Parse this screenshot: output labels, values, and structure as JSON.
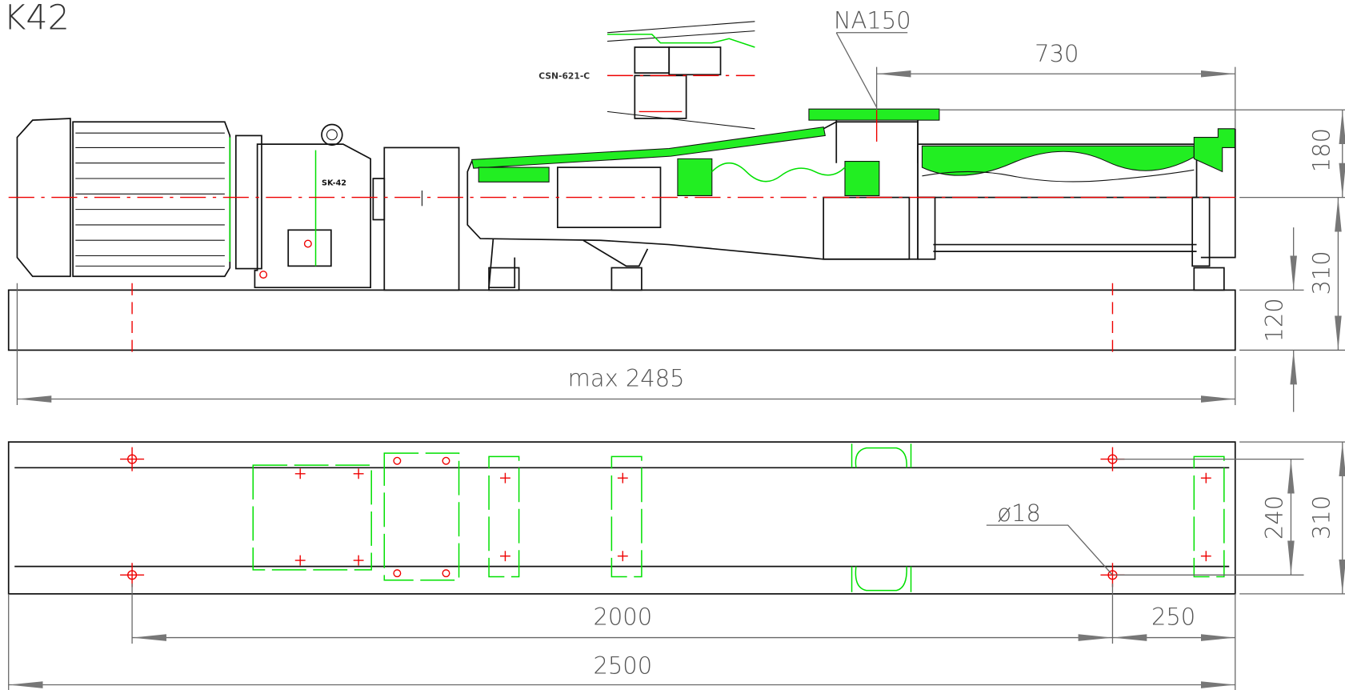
{
  "title": "K42",
  "labels": {
    "inlet": "NA150",
    "section": "CSN-621-C",
    "gearbox": "SK-42",
    "hole": "ø18"
  },
  "dimensions": {
    "inlet_length": "730",
    "flange_height": "180",
    "axis_height": "310",
    "base_height": "120",
    "overall_length": "max 2485",
    "hole_spacing": "2000",
    "end_offset": "250",
    "base_length": "2500",
    "hole_width": "240",
    "base_width": "310"
  }
}
